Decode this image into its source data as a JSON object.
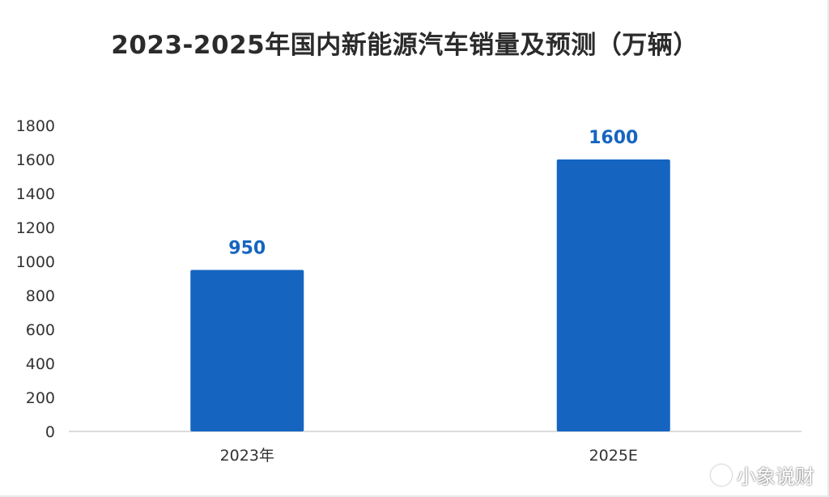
{
  "watermark": {
    "text": "小象说财",
    "icon": "weibo-icon"
  },
  "chart_data": {
    "type": "bar",
    "title": "2023-2025年国内新能源汽车销量及预测（万辆）",
    "categories": [
      "2023年",
      "2025E"
    ],
    "values": [
      950,
      1600
    ],
    "data_labels": [
      "950",
      "1600"
    ],
    "ylim": [
      0,
      1800
    ],
    "yticks": [
      0,
      200,
      400,
      600,
      800,
      1000,
      1200,
      1400,
      1600,
      1800
    ],
    "xlabel": "",
    "ylabel": "",
    "grid": false,
    "bar_color": "#1565c0",
    "label_color": "#1565c0"
  }
}
